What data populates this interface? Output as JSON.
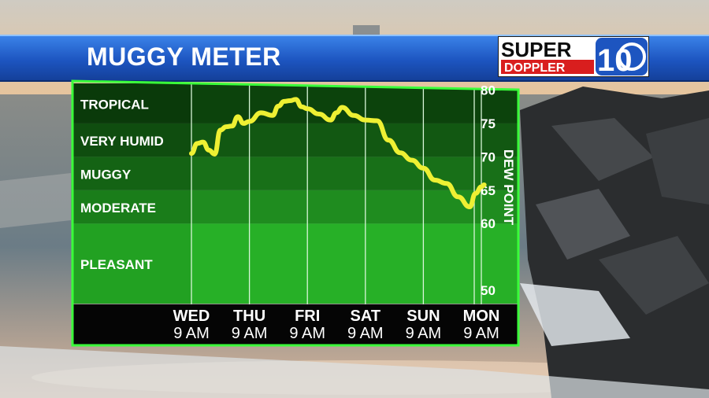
{
  "header": {
    "title": "MUGGY METER"
  },
  "logo": {
    "line1": "SUPER",
    "line2": "DOPPLER",
    "channel": "10"
  },
  "colors": {
    "banner": "#1d55c0",
    "line": "#eef033",
    "band_dark": "#0b3d0b",
    "band_light": "#1fa51f",
    "border": "#3aff3a"
  },
  "chart_data": {
    "type": "line",
    "title": "MUGGY METER",
    "ylabel": "DEW POINT",
    "ylim": [
      48,
      81
    ],
    "yticks": [
      80,
      75,
      70,
      65,
      60,
      50
    ],
    "categories": [
      {
        "day": "WED",
        "time": "9 AM"
      },
      {
        "day": "THU",
        "time": "9 AM"
      },
      {
        "day": "FRI",
        "time": "9 AM"
      },
      {
        "day": "SAT",
        "time": "9 AM"
      },
      {
        "day": "SUN",
        "time": "9 AM"
      },
      {
        "day": "MON",
        "time": "9 AM"
      }
    ],
    "bands": [
      {
        "label": "TROPICAL",
        "from": 75,
        "to": 81
      },
      {
        "label": "VERY HUMID",
        "from": 70,
        "to": 75
      },
      {
        "label": "MUGGY",
        "from": 65,
        "to": 70
      },
      {
        "label": "MODERATE",
        "from": 60,
        "to": 65
      },
      {
        "label": "PLEASANT",
        "from": 48,
        "to": 60
      }
    ],
    "series": [
      {
        "x": [
          0,
          0.1,
          0.2,
          0.3,
          0.4,
          0.5,
          0.6,
          0.7,
          0.8,
          0.9,
          1.0,
          1.2,
          1.4,
          1.5,
          1.6,
          1.7,
          1.8,
          1.9,
          2.0,
          2.2,
          2.4,
          2.5,
          2.6,
          2.8,
          3.0,
          3.2,
          3.4,
          3.6,
          3.8,
          4.0,
          4.2,
          4.4,
          4.6,
          4.8,
          4.9,
          5.0,
          5.05
        ],
        "values": [
          70.5,
          72.0,
          72.2,
          71.0,
          70.4,
          74.0,
          74.5,
          74.6,
          76.0,
          75.0,
          75.3,
          76.6,
          76.2,
          77.6,
          78.3,
          78.4,
          78.6,
          77.5,
          77.2,
          76.4,
          75.5,
          76.6,
          77.4,
          76.2,
          75.5,
          75.4,
          72.5,
          70.6,
          69.5,
          68.3,
          66.5,
          66.0,
          64.0,
          62.5,
          64.5,
          65.5,
          65.8
        ]
      }
    ]
  }
}
